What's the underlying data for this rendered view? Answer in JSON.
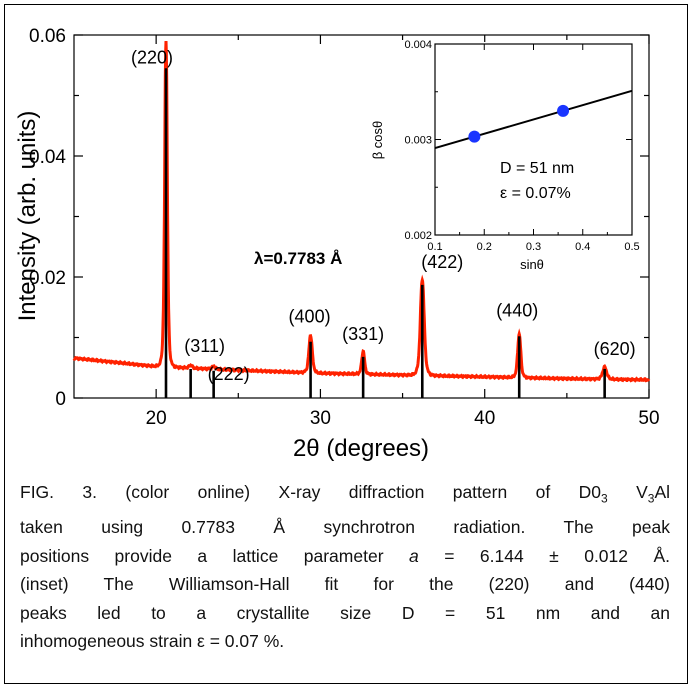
{
  "chart_data": [
    {
      "type": "line",
      "title": "",
      "xlabel": "2θ (degrees)",
      "ylabel": "Intensity (arb. units)",
      "xlim": [
        15,
        50
      ],
      "ylim": [
        0,
        0.06
      ],
      "xticks": [
        20,
        25,
        30,
        35,
        40,
        45,
        50
      ],
      "xtick_labels": [
        "20",
        "30",
        "40",
        "50"
      ],
      "yticks": [
        0,
        0.02,
        0.04,
        0.06
      ],
      "ytick_labels": [
        "0",
        "0.02",
        "0.04",
        "0.06"
      ],
      "annotation": "λ=0.7783 Å",
      "series_color": "#ff2200",
      "reference_color": "#000000",
      "peaks": [
        {
          "label": "(220)",
          "x": 20.6,
          "height": 0.054,
          "ref": 0.0545
        },
        {
          "label": "(311)",
          "x": 22.1,
          "height": 0.0005,
          "ref": 0.0048
        },
        {
          "label": "(222)",
          "x": 23.5,
          "height": 0.0005,
          "ref": 0.0045
        },
        {
          "label": "(400)",
          "x": 29.4,
          "height": 0.0062,
          "ref": 0.0093
        },
        {
          "label": "(331)",
          "x": 32.6,
          "height": 0.0038,
          "ref": 0.0068
        },
        {
          "label": "(422)",
          "x": 36.2,
          "height": 0.0159,
          "ref": 0.0187
        },
        {
          "label": "(440)",
          "x": 42.1,
          "height": 0.0072,
          "ref": 0.0102
        },
        {
          "label": "(620)",
          "x": 47.3,
          "height": 0.002,
          "ref": 0.0048
        }
      ],
      "background": {
        "x": [
          15,
          20,
          25,
          30,
          35,
          40,
          45,
          50
        ],
        "y": [
          0.0066,
          0.0052,
          0.0046,
          0.0041,
          0.0038,
          0.0035,
          0.0032,
          0.003
        ]
      }
    },
    {
      "type": "scatter",
      "title": "",
      "xlabel": "sinθ",
      "ylabel": "β cosθ",
      "xlim": [
        0.1,
        0.5
      ],
      "ylim": [
        0.002,
        0.004
      ],
      "xtick_labels": [
        "0.1",
        "0.2",
        "0.3",
        "0.4",
        "0.5"
      ],
      "ytick_labels": [
        "0.002",
        "0.003",
        "0.004"
      ],
      "points": [
        {
          "x": 0.18,
          "y": 0.00303
        },
        {
          "x": 0.36,
          "y": 0.0033
        }
      ],
      "fit": {
        "x": [
          0.1,
          0.5
        ],
        "y": [
          0.00291,
          0.00351
        ]
      },
      "point_color": "#1a35ff",
      "annotations": [
        "D = 51 nm",
        "ε = 0.07%"
      ]
    }
  ],
  "caption": {
    "lines": [
      [
        "FIG. 3. (color online) X-ray diffraction pattern of D0",
        {
          "sub": "3"
        },
        " V",
        {
          "sub": "3"
        },
        "Al"
      ],
      [
        "taken using 0.7783 Å synchrotron radiation. The peak"
      ],
      [
        "positions provide a lattice parameter ",
        {
          "i": "a"
        },
        " = 6.144 ± 0.012 Å."
      ],
      [
        "(inset) The Williamson-Hall fit for the (220) and (440)"
      ],
      [
        "peaks led to a crystallite size D = 51 nm and an"
      ],
      [
        "inhomogeneous strain ε = 0.07 %."
      ]
    ]
  }
}
